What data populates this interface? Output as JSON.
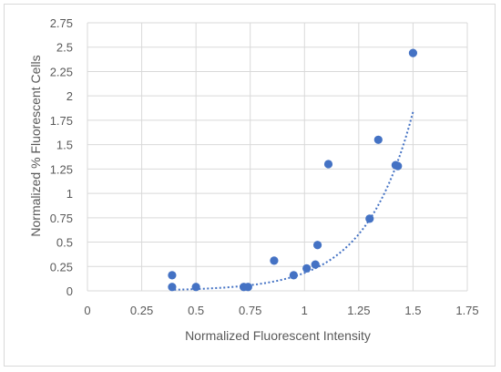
{
  "chart_data": {
    "type": "scatter",
    "xlabel": "Normalized Fluorescent Intensity",
    "ylabel": "Normalized % Fluorescent Cells",
    "xlim": [
      0,
      1.75
    ],
    "ylim": [
      0,
      2.75
    ],
    "x_ticks": [
      "0",
      "0.25",
      "0.5",
      "0.75",
      "1",
      "1.25",
      "1.5",
      "1.75"
    ],
    "y_ticks": [
      "0",
      "0.25",
      "0.5",
      "0.75",
      "1",
      "1.25",
      "1.5",
      "1.75",
      "2",
      "2.25",
      "2.5",
      "2.75"
    ],
    "grid": true,
    "legend": "none",
    "marker_color": "#4472C4",
    "trendline": {
      "type": "exponential",
      "style": "dotted",
      "color": "#4472C4",
      "a": 0.00185,
      "b": 4.6,
      "x_range": [
        0.4,
        1.5
      ]
    },
    "series": [
      {
        "x": [
          0.39,
          0.39,
          0.5,
          0.72,
          0.74,
          0.86,
          0.95,
          1.01,
          1.05,
          1.06,
          1.11,
          1.3,
          1.34,
          1.42,
          1.43,
          1.5
        ],
        "y": [
          0.16,
          0.04,
          0.04,
          0.04,
          0.04,
          0.31,
          0.16,
          0.23,
          0.27,
          0.47,
          1.3,
          0.74,
          1.55,
          1.29,
          1.28,
          2.44
        ]
      }
    ]
  }
}
